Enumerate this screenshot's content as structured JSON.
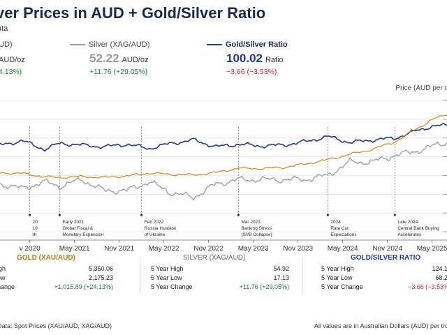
{
  "header": {
    "title": "ver Prices in AUD + Gold/Silver Ratio",
    "subtitle": "ata"
  },
  "legend": {
    "gold": {
      "name": "UD)",
      "value_unit": "AUD/oz",
      "change": "4.13%)"
    },
    "silver": {
      "name": "Silver (XAG/AUD)",
      "value": "52.22",
      "value_unit": "AUD/oz",
      "change": "+11.76 (+29.05%)"
    },
    "ratio": {
      "name": "Gold/Silver Ratio",
      "value": "100.02",
      "value_unit": "Ratio",
      "change": "−3.66 (−3.53%)"
    }
  },
  "colors": {
    "gold": "#c9921f",
    "silver": "#9a9a9a",
    "ratio": "#1f3a8a",
    "grid": "#dcdcdc",
    "positive": "#1e7a34",
    "negative": "#c0262f"
  },
  "chart_data": {
    "type": "line",
    "ylabel": "Price (AUD per o",
    "x_tick_labels": [
      "v 2020",
      "May 2021",
      "Nov 2021",
      "May 2022",
      "Nov 2022",
      "May 2023",
      "Nov 2023",
      "May 2024",
      "Nov 2024",
      "May 2025"
    ],
    "x_tick_dates": [
      "2020-11",
      "2021-05",
      "2021-11",
      "2022-05",
      "2022-11",
      "2023-05",
      "2023-11",
      "2024-05",
      "2024-11",
      "2025-05"
    ],
    "x_range": [
      "2020-07",
      "2025-07"
    ],
    "series": [
      {
        "name": "Gold/Silver Ratio",
        "key": "ratio",
        "dates": [
          "2020-07",
          "2020-10",
          "2021-01",
          "2021-03",
          "2021-06",
          "2021-09",
          "2021-12",
          "2022-03",
          "2022-06",
          "2022-09",
          "2022-12",
          "2023-03",
          "2023-06",
          "2023-09",
          "2023-12",
          "2024-03",
          "2024-06",
          "2024-09",
          "2024-12",
          "2025-03",
          "2025-05",
          "2025-07"
        ],
        "values": [
          78,
          83,
          73,
          80,
          78,
          76,
          79,
          74,
          80,
          84,
          76,
          79,
          77,
          78,
          82,
          88,
          81,
          84,
          86,
          95,
          100,
          101
        ]
      },
      {
        "name": "Gold (XAU/AUD)",
        "key": "gold",
        "dates": [
          "2020-07",
          "2020-10",
          "2021-01",
          "2021-03",
          "2021-06",
          "2021-09",
          "2021-12",
          "2022-03",
          "2022-06",
          "2022-09",
          "2022-12",
          "2023-03",
          "2023-06",
          "2023-09",
          "2023-12",
          "2024-03",
          "2024-06",
          "2024-09",
          "2024-12",
          "2025-03",
          "2025-05",
          "2025-07"
        ],
        "values": [
          2650,
          2630,
          2470,
          2440,
          2480,
          2440,
          2510,
          2640,
          2580,
          2560,
          2670,
          2870,
          2850,
          2900,
          3060,
          3260,
          3510,
          3740,
          4080,
          4700,
          5100,
          5350
        ]
      },
      {
        "name": "Silver (XAG/AUD)",
        "key": "silver",
        "dates": [
          "2020-07",
          "2020-10",
          "2021-01",
          "2021-03",
          "2021-06",
          "2021-09",
          "2021-12",
          "2022-03",
          "2022-06",
          "2022-09",
          "2022-12",
          "2023-03",
          "2023-06",
          "2023-09",
          "2023-12",
          "2024-03",
          "2024-06",
          "2024-09",
          "2024-12",
          "2025-03",
          "2025-05",
          "2025-07"
        ],
        "values": [
          34,
          32,
          35,
          33,
          36,
          31,
          31,
          35,
          30,
          28,
          34,
          36,
          36,
          36,
          36,
          38,
          44,
          44,
          47,
          49,
          51,
          53
        ]
      }
    ],
    "annotations": [
      {
        "date": "2020-11",
        "lines": [
          "20",
          "19",
          "th"
        ]
      },
      {
        "date": "2021-03",
        "lines": [
          "Early 2021",
          "Global Fiscal &",
          "Monetary Expansion"
        ]
      },
      {
        "date": "2022-02",
        "lines": [
          "Feb 2022",
          "Russia Invasion",
          "of Ukraine"
        ]
      },
      {
        "date": "2023-03",
        "lines": [
          "Mar 2023",
          "Banking Stress",
          "(SVB Collapse)"
        ]
      },
      {
        "date": "2024-03",
        "lines": [
          "2024",
          "Rate Cut",
          "Expectations"
        ]
      },
      {
        "date": "2024-12",
        "lines": [
          "Late 2024",
          "Central Bank Buying",
          "Accelerates"
        ]
      }
    ],
    "grid": true,
    "legend_position": "top"
  },
  "stats": {
    "gold": {
      "title": "GOLD (XAU/AUD)",
      "rows": [
        {
          "label": "igh",
          "value": "5,350.06"
        },
        {
          "label": "ow",
          "value": "2,175.23"
        },
        {
          "label": "hange",
          "value": "+1,015.89 (+24.13%)"
        }
      ]
    },
    "silver": {
      "title": "SILVER (XAG/AUD)",
      "rows": [
        {
          "label": "5 Year High",
          "value": "54.92"
        },
        {
          "label": "5 Year Low",
          "value": "17.13"
        },
        {
          "label": "5 Year Change",
          "value": "+11.76 (+29.05%)"
        }
      ]
    },
    "ratio": {
      "title": "GOLD/SILVER RATIO",
      "rows": [
        {
          "label": "5 Year High",
          "value": "124.15"
        },
        {
          "label": "5 Year Low",
          "value": "68.20"
        },
        {
          "label": "5 Year Change",
          "value": "−3.66 (−3.53%)"
        }
      ]
    }
  },
  "footer": {
    "left": "Data: Spot Prices (XAU/AUD, XAG/AUD)",
    "right": "All values are in Australian Dollars (AUD) per tro"
  }
}
